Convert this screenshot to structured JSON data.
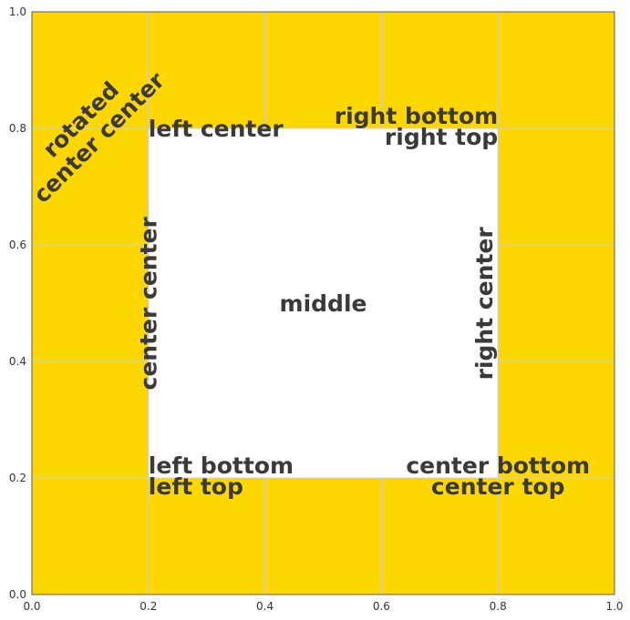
{
  "chart_data": {
    "type": "text-alignment-demo",
    "title": "",
    "xlabel": "",
    "ylabel": "",
    "xlim": [
      0,
      1
    ],
    "ylim": [
      0,
      1
    ],
    "x_ticks": [
      "0.0",
      "0.2",
      "0.4",
      "0.6",
      "0.8",
      "1.0"
    ],
    "y_ticks": [
      "0.0",
      "0.2",
      "0.4",
      "0.6",
      "0.8",
      "1.0"
    ],
    "grid": true,
    "background_color": "#FFD700",
    "inner_rect": {
      "x0": 0.2,
      "y0": 0.2,
      "x1": 0.8,
      "y1": 0.8,
      "fill": "#FFFFFF",
      "edge": "#cccccc"
    },
    "annotations": [
      {
        "name": "left-bottom",
        "lines": [
          "left bottom"
        ],
        "x": 0.2,
        "y": 0.2,
        "ha": "left",
        "va": "bottom",
        "rotation": 0,
        "color": "#3a3a3a"
      },
      {
        "name": "left-top",
        "lines": [
          "left top"
        ],
        "x": 0.2,
        "y": 0.2,
        "ha": "left",
        "va": "top",
        "rotation": 0,
        "color": "#3a3a3a"
      },
      {
        "name": "right-bottom",
        "lines": [
          "right bottom"
        ],
        "x": 0.8,
        "y": 0.8,
        "ha": "right",
        "va": "bottom",
        "rotation": 0,
        "color": "#3a3a3a"
      },
      {
        "name": "right-top",
        "lines": [
          "right top"
        ],
        "x": 0.8,
        "y": 0.8,
        "ha": "right",
        "va": "top",
        "rotation": 0,
        "color": "#3a3a3a"
      },
      {
        "name": "center-bottom",
        "lines": [
          "center bottom"
        ],
        "x": 0.8,
        "y": 0.2,
        "ha": "center",
        "va": "bottom",
        "rotation": 0,
        "color": "#3a3a3a"
      },
      {
        "name": "center-top",
        "lines": [
          "center top"
        ],
        "x": 0.8,
        "y": 0.2,
        "ha": "center",
        "va": "top",
        "rotation": 0,
        "color": "#3a3a3a"
      },
      {
        "name": "left-center",
        "lines": [
          "left center"
        ],
        "x": 0.2,
        "y": 0.8,
        "ha": "left",
        "va": "center",
        "rotation": 0,
        "color": "#3a3a3a"
      },
      {
        "name": "right-center",
        "lines": [
          "right center"
        ],
        "x": 0.8,
        "y": 0.5,
        "ha": "right",
        "va": "center",
        "rotation": 90,
        "color": "#3a3a3a"
      },
      {
        "name": "center-center",
        "lines": [
          "center center"
        ],
        "x": 0.2,
        "y": 0.5,
        "ha": "center",
        "va": "center",
        "rotation": 90,
        "color": "#3a3a3a"
      },
      {
        "name": "middle",
        "lines": [
          "middle"
        ],
        "x": 0.5,
        "y": 0.5,
        "ha": "center",
        "va": "center",
        "rotation": 0,
        "color": "#c44e52"
      },
      {
        "name": "rotated-center-center",
        "lines": [
          "rotated",
          "center center"
        ],
        "x": 0.1,
        "y": 0.8,
        "ha": "center",
        "va": "center",
        "rotation": 45,
        "color": "#3a3a3a"
      }
    ]
  }
}
